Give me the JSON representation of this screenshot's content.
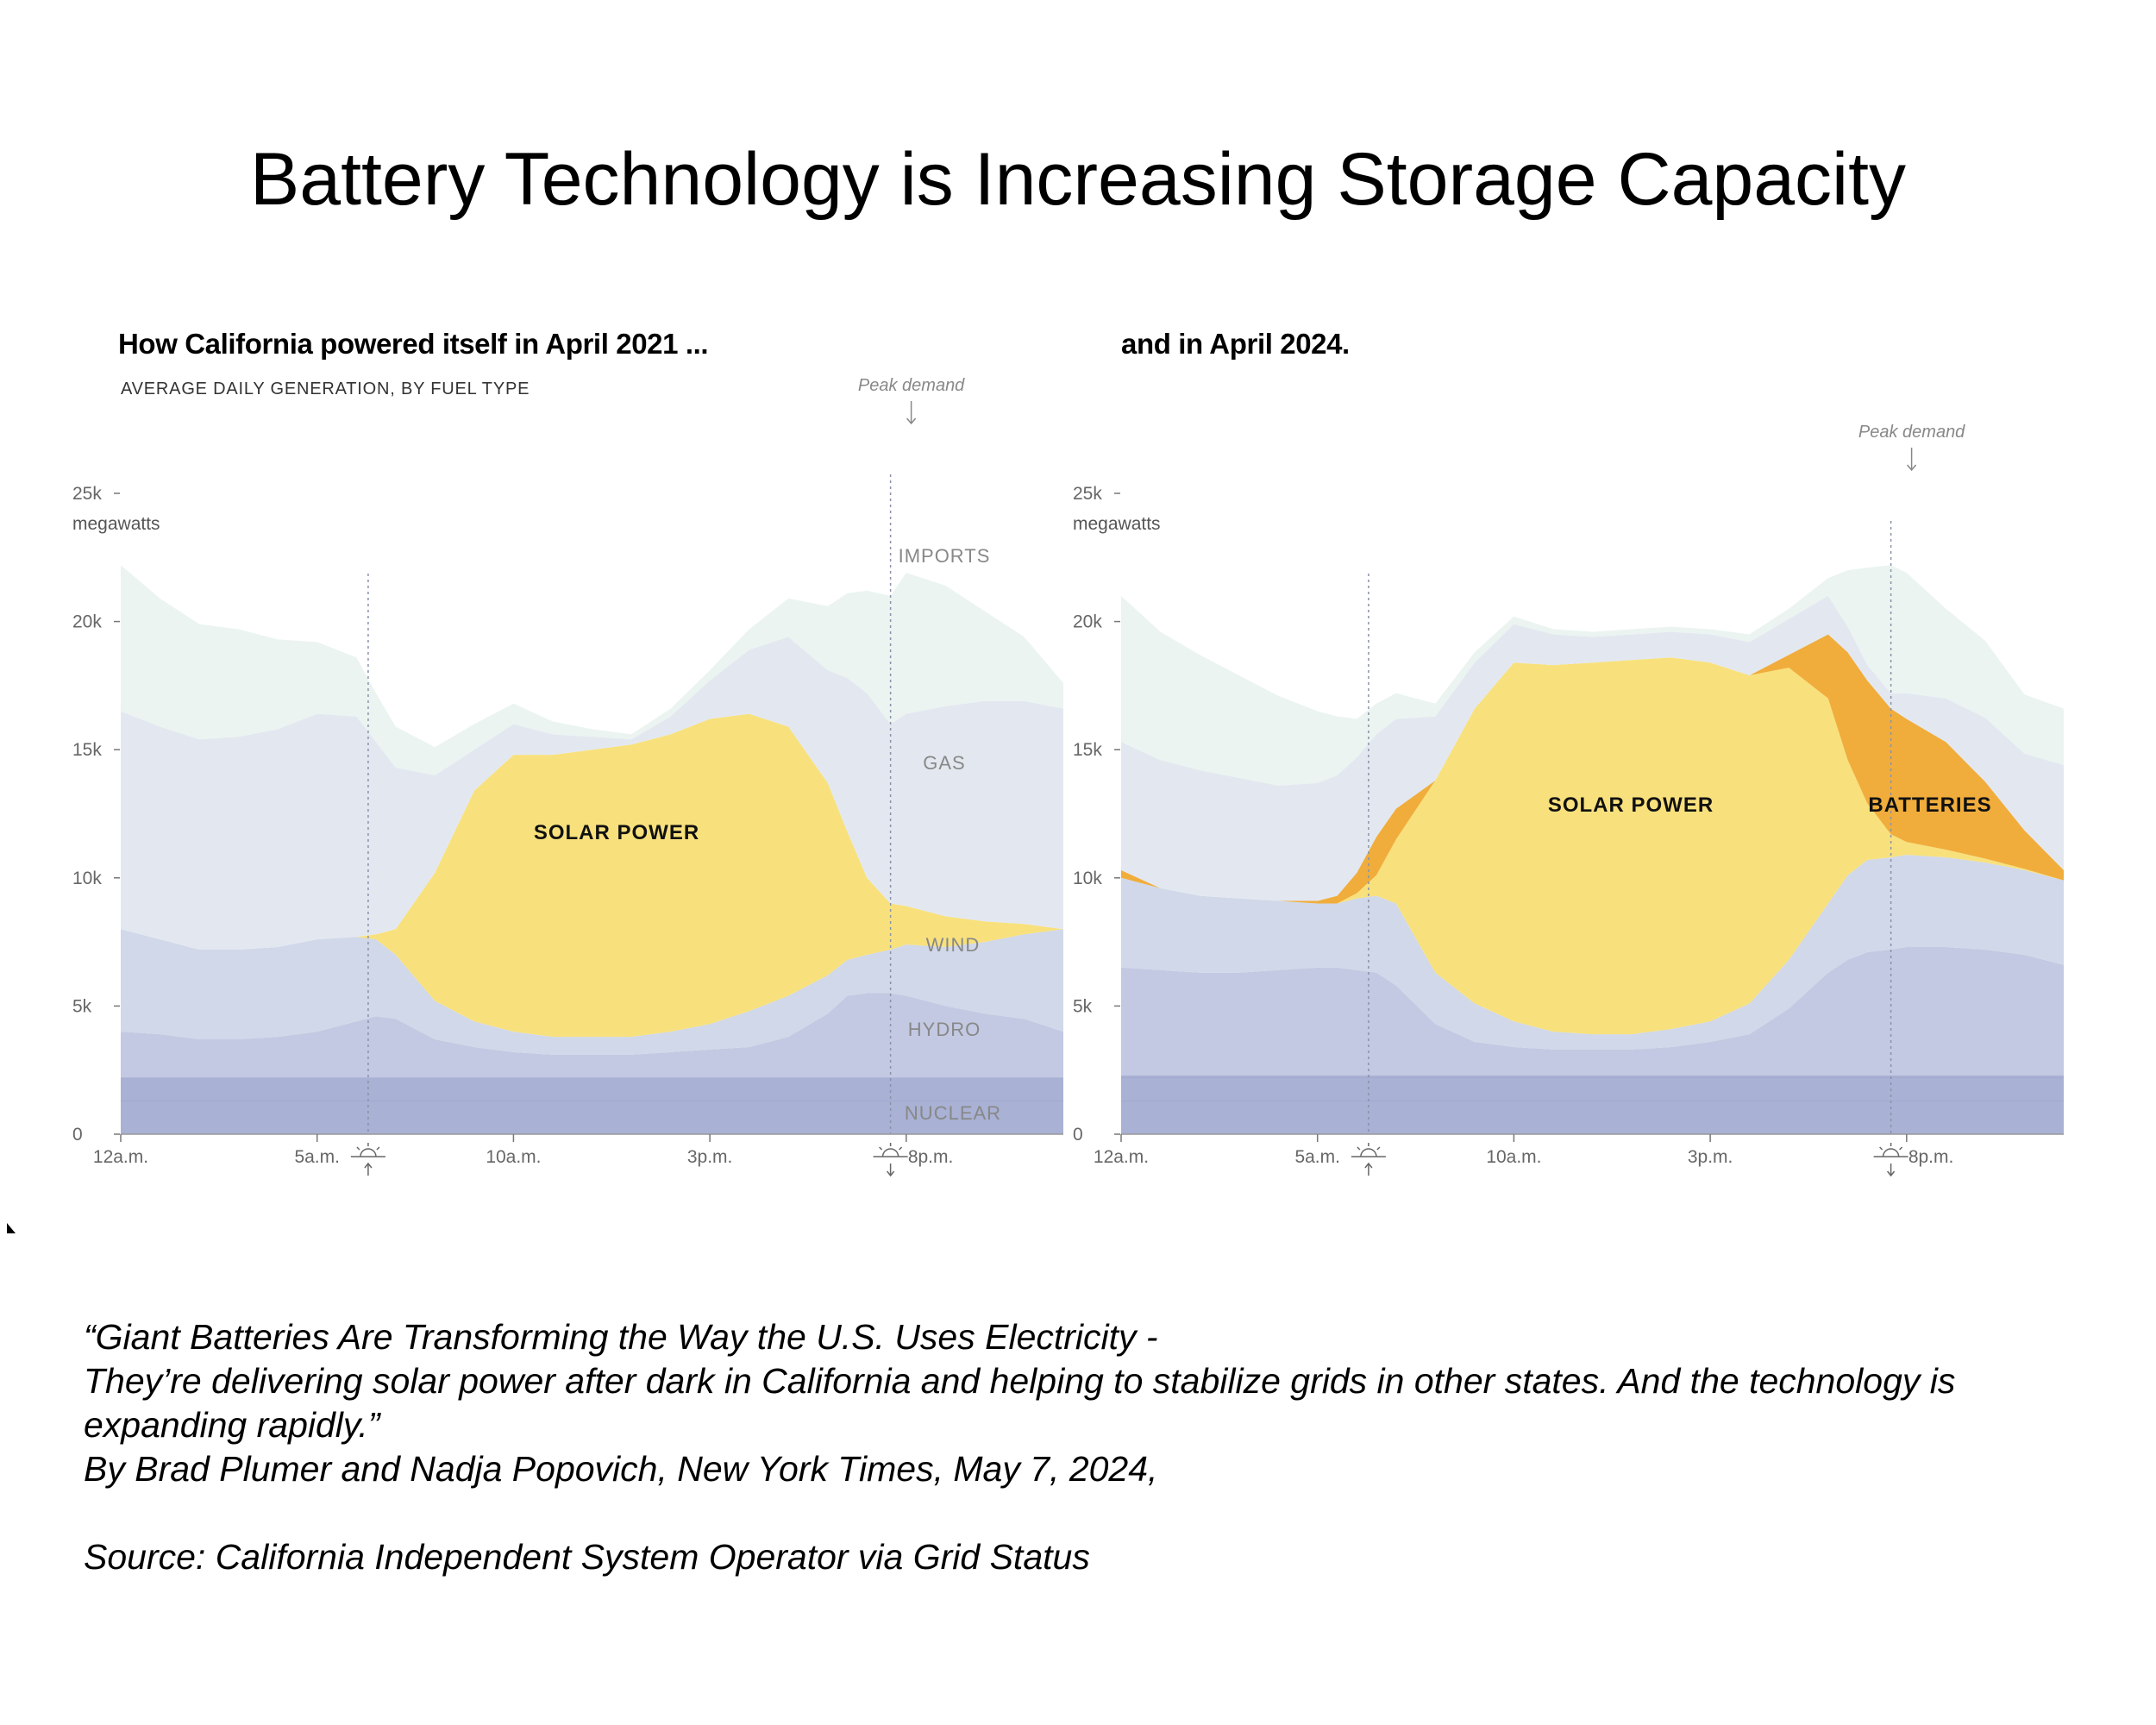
{
  "slide": {
    "title": "Battery Technology is Increasing Storage Capacity",
    "caption_lines": [
      "“Giant Batteries Are Transforming the Way the U.S. Uses Electricity -",
      "They’re delivering solar power after dark in California and helping to stabilize grids in other states. And the technology is",
      "expanding rapidly.”",
      "By Brad Plumer and Nadja Popovich, New York Times, May 7, 2024,"
    ],
    "source": "Source: California Independent System Operator via Grid Status"
  },
  "colors": {
    "nuclear": "#a9b1d4",
    "hydro": "#c3c9e2",
    "wind": "#d0d8e9",
    "solar": "#f8e17c",
    "batteries": "#f0ad3c",
    "gas": "#e3e8f0",
    "imports": "#ebf4f1",
    "axis_text": "#666666",
    "annotation": "#888888"
  },
  "chart_data": [
    {
      "type": "area",
      "title": "How California powered itself in April 2021 ...",
      "subtitle": "AVERAGE DAILY GENERATION, BY FUEL TYPE",
      "ylabel": "megawatts",
      "ylim": [
        0,
        25000
      ],
      "xlim": [
        0,
        24
      ],
      "yticks": [
        0,
        5000,
        10000,
        15000,
        20000,
        25000
      ],
      "ytick_labels": [
        "0",
        "5k",
        "10k",
        "15k",
        "20k",
        "25k"
      ],
      "xticks": [
        0,
        5,
        10,
        15,
        20
      ],
      "xtick_labels": [
        "12a.m.",
        "5a.m.",
        "10a.m.",
        "3p.m.",
        "8p.m."
      ],
      "sunrise_hour": 6.3,
      "sunset_hour": 19.6,
      "peak_demand": {
        "label": "Peak demand",
        "hour": 19.6
      },
      "x": [
        0,
        1,
        2,
        3,
        4,
        5,
        6,
        6.5,
        7,
        8,
        9,
        10,
        11,
        12,
        13,
        14,
        15,
        16,
        17,
        18,
        18.5,
        19,
        19.6,
        20,
        21,
        22,
        23,
        24
      ],
      "series": [
        {
          "name": "NUCLEAR",
          "label": "NUCLEAR",
          "values": [
            2200,
            2200,
            2200,
            2200,
            2200,
            2200,
            2200,
            2200,
            2200,
            2200,
            2200,
            2200,
            2200,
            2200,
            2200,
            2200,
            2200,
            2200,
            2200,
            2200,
            2200,
            2200,
            2200,
            2200,
            2200,
            2200,
            2200,
            2200
          ]
        },
        {
          "name": "HYDRO",
          "label": "HYDRO",
          "values": [
            1800,
            1700,
            1500,
            1500,
            1600,
            1800,
            2200,
            2400,
            2300,
            1500,
            1200,
            1000,
            900,
            900,
            900,
            1000,
            1100,
            1200,
            1600,
            2500,
            3200,
            3300,
            3300,
            3200,
            2800,
            2500,
            2300,
            1800
          ]
        },
        {
          "name": "WIND",
          "label": "WIND",
          "values": [
            4000,
            3700,
            3500,
            3500,
            3500,
            3600,
            3300,
            3000,
            2500,
            1500,
            1000,
            800,
            700,
            700,
            700,
            800,
            1000,
            1400,
            1600,
            1500,
            1400,
            1500,
            1700,
            2000,
            2300,
            2800,
            3300,
            4000
          ]
        },
        {
          "name": "SOLAR POWER",
          "label": "SOLAR POWER",
          "values": [
            0,
            0,
            0,
            0,
            0,
            0,
            0,
            200,
            1000,
            5000,
            9000,
            10800,
            11000,
            11200,
            11400,
            11600,
            11900,
            11600,
            10500,
            7500,
            5000,
            3000,
            1800,
            1500,
            1200,
            800,
            400,
            0
          ]
        },
        {
          "name": "BATTERIES",
          "label": "",
          "values": [
            0,
            0,
            0,
            0,
            0,
            0,
            0,
            0,
            0,
            0,
            0,
            0,
            0,
            0,
            0,
            0,
            0,
            0,
            0,
            0,
            0,
            0,
            0,
            0,
            0,
            0,
            0,
            0
          ]
        },
        {
          "name": "GAS",
          "label": "GAS",
          "values": [
            8500,
            8300,
            8200,
            8300,
            8500,
            8800,
            8600,
            7500,
            6300,
            3800,
            1600,
            1200,
            800,
            500,
            200,
            700,
            1500,
            2500,
            3500,
            4400,
            6000,
            7200,
            7000,
            7500,
            8200,
            8600,
            8700,
            8600
          ]
        },
        {
          "name": "IMPORTS",
          "label": "IMPORTS",
          "values": [
            5700,
            5000,
            4500,
            4200,
            3500,
            2800,
            2300,
            1900,
            1600,
            1100,
            1000,
            800,
            500,
            300,
            200,
            300,
            400,
            800,
            1500,
            2500,
            3300,
            4000,
            5000,
            5500,
            4700,
            3500,
            2500,
            1000
          ]
        }
      ]
    },
    {
      "type": "area",
      "title": "and in April 2024.",
      "ylabel": "megawatts",
      "ylim": [
        0,
        25000
      ],
      "xlim": [
        0,
        24
      ],
      "yticks": [
        0,
        5000,
        10000,
        15000,
        20000,
        25000
      ],
      "ytick_labels": [
        "0",
        "5k",
        "10k",
        "15k",
        "20k",
        "25k"
      ],
      "xticks": [
        0,
        5,
        10,
        15,
        20
      ],
      "xtick_labels": [
        "12a.m.",
        "5a.m.",
        "10a.m.",
        "3p.m.",
        "8p.m."
      ],
      "sunrise_hour": 6.3,
      "sunset_hour": 19.6,
      "peak_demand": {
        "label": "Peak demand",
        "hour": 19.6
      },
      "x": [
        0,
        1,
        2,
        3,
        4,
        5,
        5.5,
        6,
        6.5,
        7,
        8,
        9,
        10,
        11,
        12,
        13,
        14,
        15,
        16,
        17,
        18,
        18.5,
        19,
        19.6,
        20,
        21,
        22,
        23,
        24
      ],
      "series": [
        {
          "name": "NUCLEAR",
          "label": "",
          "values": [
            2300,
            2300,
            2300,
            2300,
            2300,
            2300,
            2300,
            2300,
            2300,
            2300,
            2300,
            2300,
            2300,
            2300,
            2300,
            2300,
            2300,
            2300,
            2300,
            2300,
            2300,
            2300,
            2300,
            2300,
            2300,
            2300,
            2300,
            2300,
            2300
          ]
        },
        {
          "name": "HYDRO",
          "label": "",
          "values": [
            4200,
            4100,
            4000,
            4000,
            4100,
            4200,
            4200,
            4100,
            4000,
            3500,
            2000,
            1300,
            1100,
            1000,
            1000,
            1000,
            1100,
            1300,
            1600,
            2600,
            4000,
            4500,
            4800,
            4900,
            5000,
            5000,
            4900,
            4700,
            4300
          ]
        },
        {
          "name": "WIND",
          "label": "",
          "values": [
            3500,
            3200,
            3000,
            2900,
            2700,
            2500,
            2500,
            2800,
            3000,
            3200,
            2000,
            1500,
            1000,
            700,
            600,
            600,
            700,
            800,
            1200,
            1900,
            2700,
            3300,
            3600,
            3600,
            3600,
            3500,
            3400,
            3300,
            3300
          ]
        },
        {
          "name": "SOLAR POWER",
          "label": "SOLAR POWER",
          "values": [
            0,
            0,
            0,
            0,
            0,
            0,
            0,
            200,
            800,
            2500,
            7500,
            11500,
            14000,
            14300,
            14500,
            14600,
            14500,
            14000,
            12800,
            11400,
            8000,
            4500,
            2200,
            900,
            500,
            300,
            150,
            50,
            0
          ]
        },
        {
          "name": "BATTERIES",
          "label": "BATTERIES",
          "values": [
            300,
            0,
            0,
            0,
            0,
            100,
            300,
            800,
            1500,
            1200,
            0,
            0,
            0,
            0,
            0,
            0,
            0,
            0,
            0,
            500,
            2500,
            4200,
            4800,
            4900,
            4800,
            4200,
            3000,
            1500,
            400
          ]
        },
        {
          "name": "GAS",
          "label": "",
          "values": [
            5000,
            5000,
            4900,
            4700,
            4500,
            4600,
            4700,
            4500,
            4000,
            3500,
            2500,
            1800,
            1500,
            1200,
            1000,
            1000,
            1000,
            1100,
            1300,
            1400,
            1500,
            1000,
            600,
            600,
            1000,
            1700,
            2500,
            3000,
            4100
          ]
        },
        {
          "name": "IMPORTS",
          "label": "",
          "values": [
            5700,
            5000,
            4500,
            4000,
            3500,
            2800,
            2300,
            1500,
            1200,
            1000,
            500,
            400,
            300,
            200,
            200,
            200,
            200,
            200,
            300,
            400,
            700,
            2200,
            3800,
            5000,
            4700,
            3500,
            3000,
            2300,
            2200
          ]
        }
      ]
    }
  ]
}
